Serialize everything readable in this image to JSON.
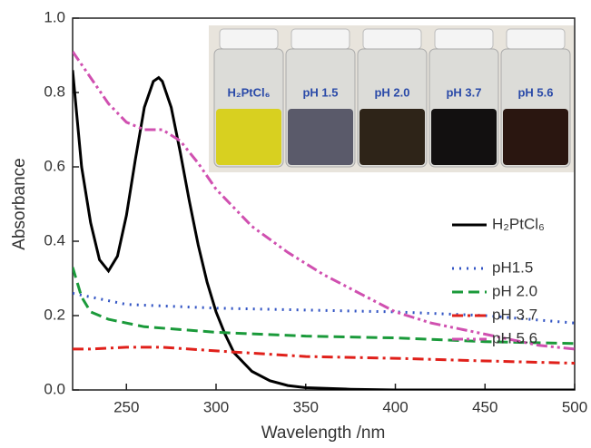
{
  "chart_data": {
    "type": "line",
    "xlabel": "Wavelength /nm",
    "ylabel": "Absorbance",
    "xlim": [
      220,
      500
    ],
    "ylim": [
      0,
      1.0
    ],
    "xticks": [
      250,
      300,
      350,
      400,
      450,
      500
    ],
    "yticks": [
      {
        "value": 0,
        "label": "0.0"
      },
      0.2,
      0.4,
      0.6,
      0.8,
      {
        "value": 1.0,
        "label": "1.0"
      }
    ],
    "legend": "right",
    "inset_labels": [
      "H₂PtCl₆",
      "pH 1.5",
      "pH 2.0",
      "pH 3.7",
      "pH 5.6"
    ],
    "series": [
      {
        "name": "H₂PtCl₆",
        "color": "#000000",
        "dash": "",
        "x": [
          220,
          225,
          230,
          235,
          240,
          245,
          250,
          255,
          260,
          265,
          268,
          270,
          275,
          280,
          285,
          290,
          295,
          300,
          305,
          310,
          320,
          330,
          340,
          350,
          375,
          400,
          450,
          500
        ],
        "values": [
          0.86,
          0.6,
          0.45,
          0.35,
          0.32,
          0.36,
          0.47,
          0.62,
          0.76,
          0.83,
          0.84,
          0.83,
          0.76,
          0.64,
          0.51,
          0.39,
          0.29,
          0.21,
          0.15,
          0.1,
          0.05,
          0.025,
          0.012,
          0.006,
          0.002,
          0,
          0,
          0
        ]
      },
      {
        "name": "pH1.5",
        "color": "#3355c4",
        "dash": "2 6",
        "x": [
          220,
          250,
          300,
          350,
          400,
          450,
          500
        ],
        "values": [
          0.26,
          0.23,
          0.22,
          0.215,
          0.21,
          0.2,
          0.18
        ]
      },
      {
        "name": "pH 2.0",
        "color": "#1a9a3a",
        "dash": "12 6",
        "x": [
          220,
          225,
          230,
          240,
          260,
          300,
          350,
          400,
          450,
          500
        ],
        "values": [
          0.33,
          0.25,
          0.21,
          0.19,
          0.17,
          0.155,
          0.145,
          0.14,
          0.13,
          0.125
        ]
      },
      {
        "name": "pH 3.7",
        "color": "#e0201a",
        "dash": "12 5 3 5",
        "x": [
          220,
          230,
          250,
          270,
          300,
          350,
          400,
          450,
          500
        ],
        "values": [
          0.11,
          0.11,
          0.115,
          0.115,
          0.105,
          0.09,
          0.085,
          0.078,
          0.072
        ]
      },
      {
        "name": "pH 5.6",
        "color": "#d050b0",
        "dash": "12 4 3 4 3 4",
        "x": [
          220,
          230,
          240,
          250,
          260,
          270,
          280,
          290,
          300,
          320,
          340,
          360,
          380,
          400,
          420,
          450,
          480,
          500
        ],
        "values": [
          0.91,
          0.84,
          0.77,
          0.72,
          0.7,
          0.7,
          0.67,
          0.61,
          0.54,
          0.44,
          0.37,
          0.31,
          0.26,
          0.21,
          0.18,
          0.15,
          0.12,
          0.11
        ]
      }
    ]
  }
}
